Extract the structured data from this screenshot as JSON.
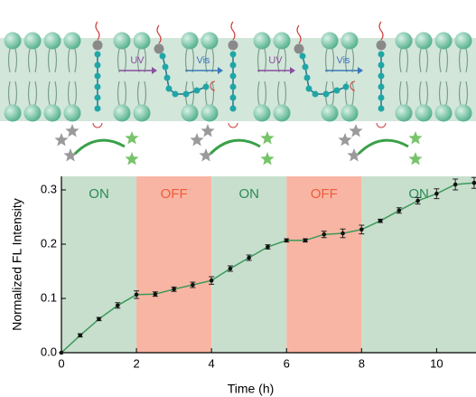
{
  "schematic": {
    "arrow_labels": [
      "UV",
      "Vis",
      "UV",
      "Vis"
    ]
  },
  "chart_data": {
    "type": "line",
    "x_label": "Time (h)",
    "y_label": "Normalized FL Intensity",
    "xlim": [
      0,
      11.05
    ],
    "ylim": [
      0,
      0.325
    ],
    "xticks": [
      0,
      2,
      4,
      6,
      8,
      10
    ],
    "yticks": [
      {
        "value": 0,
        "label": "0.0"
      },
      0.1,
      0.2,
      0.3
    ],
    "regions": [
      {
        "start": 0,
        "end": 2,
        "label": "ON",
        "color": "#c8dfcd",
        "label_color": "#2a8a55"
      },
      {
        "start": 2,
        "end": 4,
        "label": "OFF",
        "color": "#f8b5a3",
        "label_color": "#ef5a3a"
      },
      {
        "start": 4,
        "end": 6,
        "label": "ON",
        "color": "#c8dfcd",
        "label_color": "#2a8a55"
      },
      {
        "start": 6,
        "end": 8,
        "label": "OFF",
        "color": "#f8b5a3",
        "label_color": "#ef5a3a"
      },
      {
        "start": 8,
        "end": 11.05,
        "label": "ON",
        "color": "#c8dfcd",
        "label_color": "#2a8a55"
      }
    ],
    "x": [
      0,
      0.5,
      1,
      1.5,
      2,
      2.5,
      3,
      3.5,
      4,
      4.5,
      5,
      5.5,
      6,
      6.5,
      7,
      7.5,
      8,
      8.5,
      9,
      9.5,
      10,
      10.5,
      11
    ],
    "series": [
      {
        "color": "#3a9a5a",
        "values": [
          0,
          0.032,
          0.062,
          0.087,
          0.107,
          0.108,
          0.117,
          0.125,
          0.133,
          0.155,
          0.175,
          0.195,
          0.207,
          0.207,
          0.218,
          0.22,
          0.227,
          0.243,
          0.262,
          0.28,
          0.293,
          0.31,
          0.313
        ],
        "errors": [
          0,
          0.003,
          0.003,
          0.005,
          0.007,
          0.004,
          0.004,
          0.005,
          0.007,
          0.005,
          0.005,
          0.004,
          0.003,
          0.003,
          0.006,
          0.008,
          0.008,
          0.003,
          0.005,
          0.006,
          0.009,
          0.01,
          0.01
        ]
      }
    ]
  }
}
